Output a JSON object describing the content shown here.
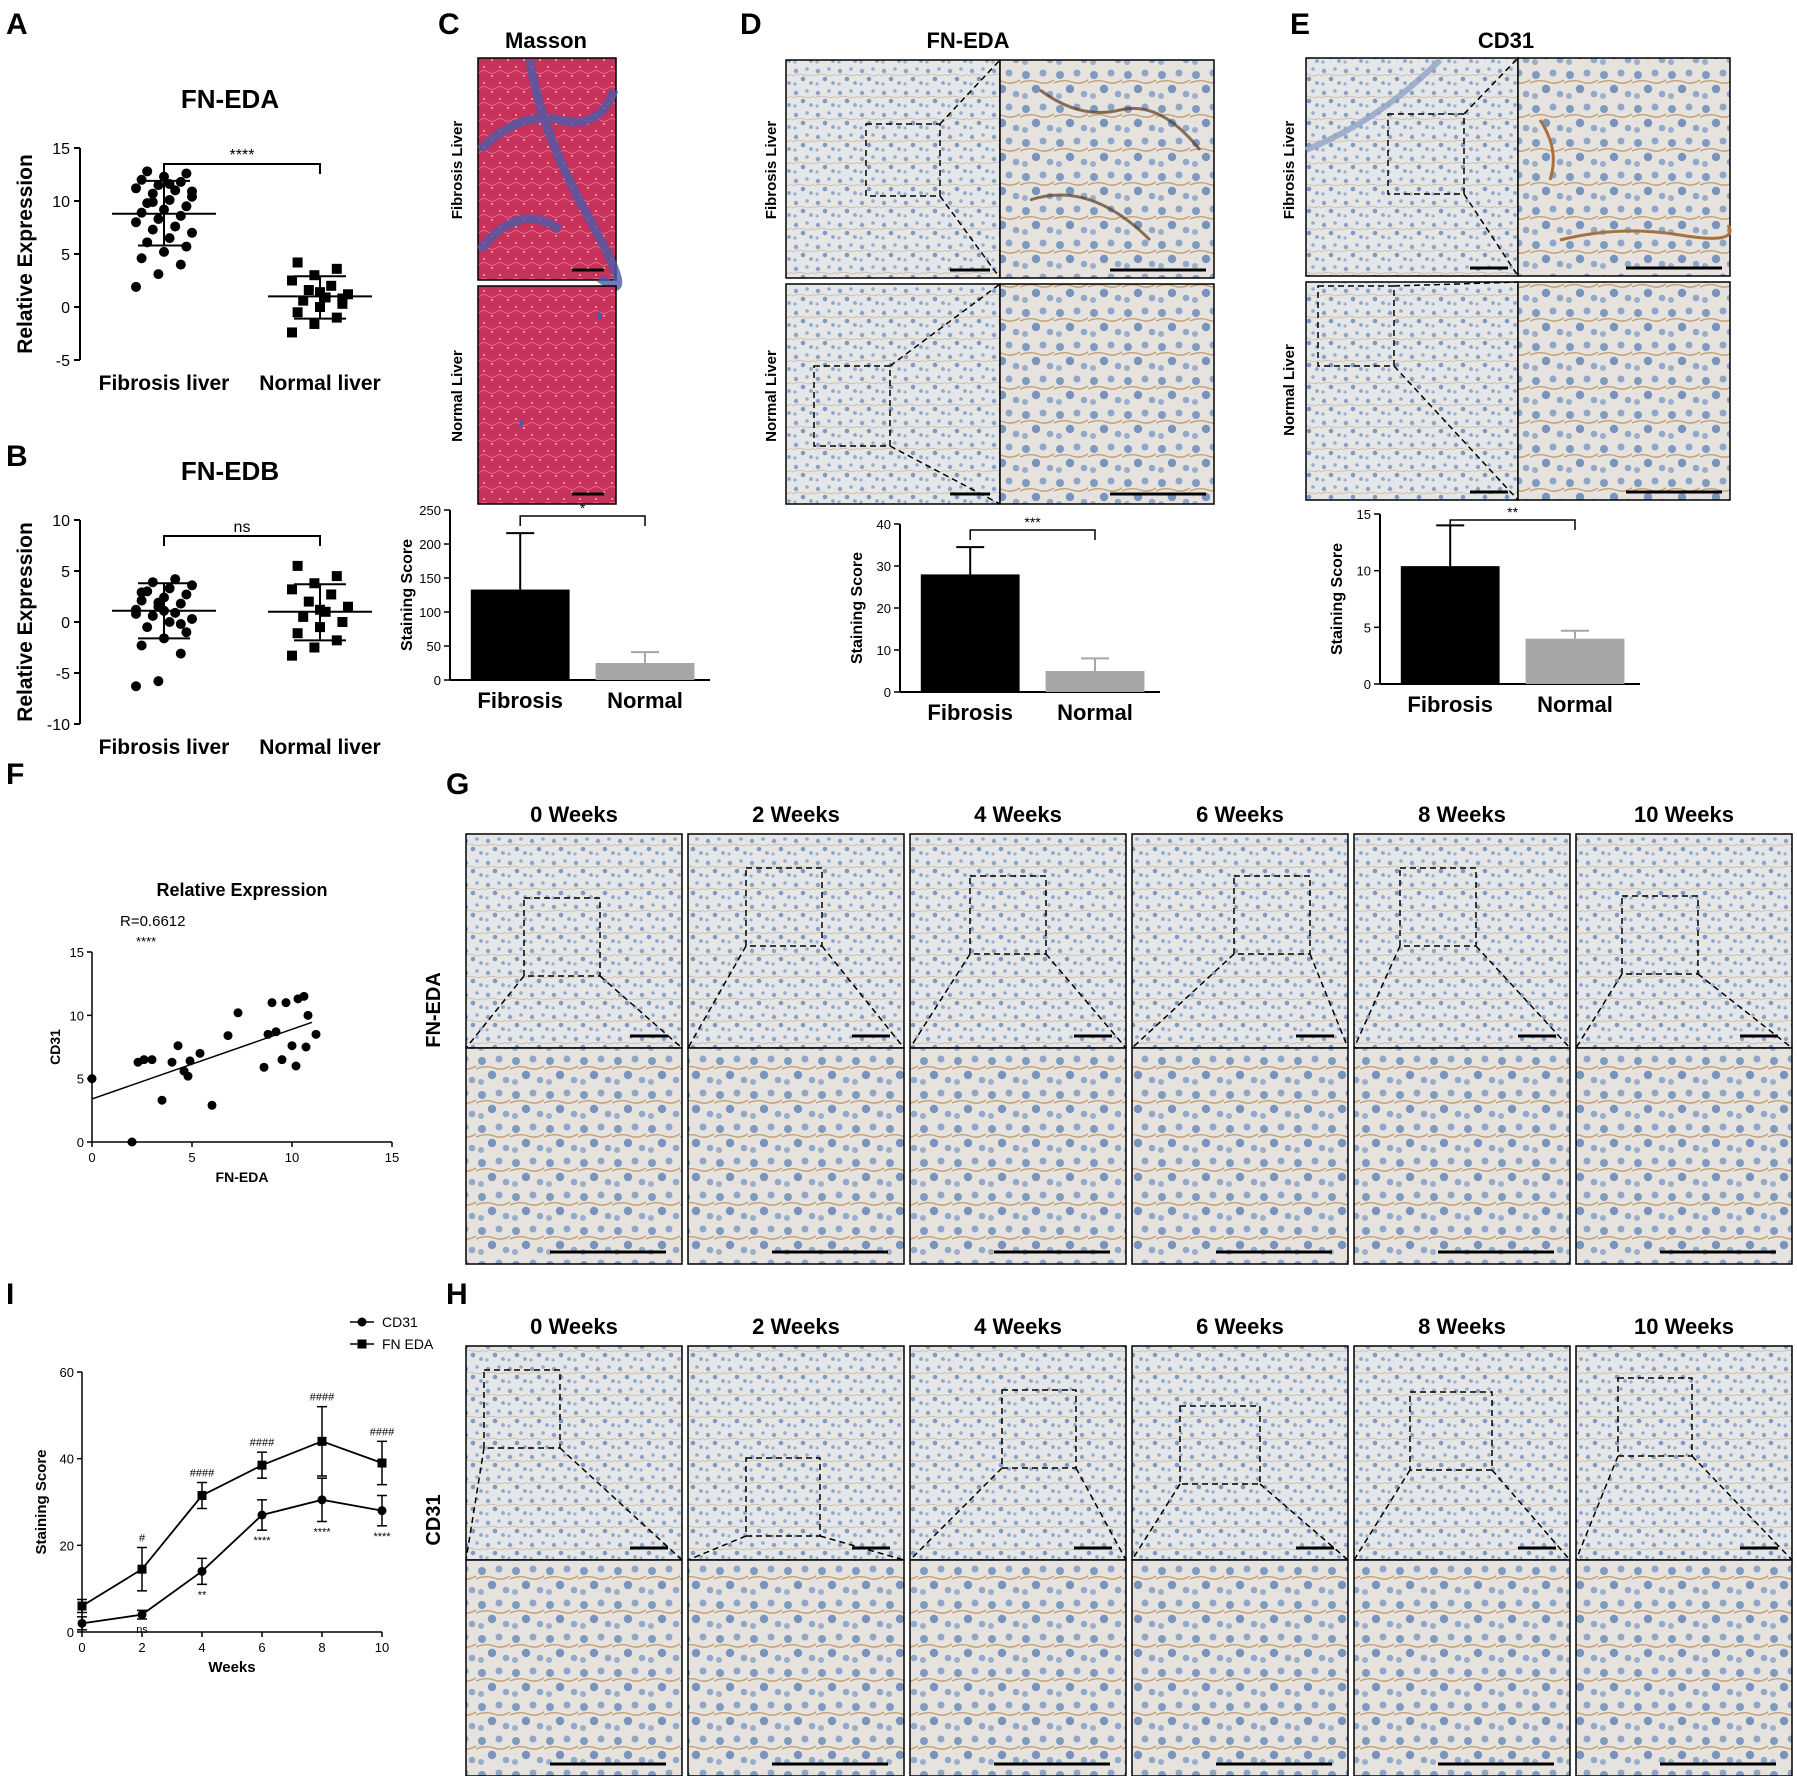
{
  "panels": {
    "A": "A",
    "B": "B",
    "C": "C",
    "D": "D",
    "E": "E",
    "F": "F",
    "G": "G",
    "H": "H",
    "I": "I"
  },
  "colors": {
    "masson_red": "#c8325a",
    "masson_blue": "#4e5aa8",
    "ihc_bg": "#e4e6e8",
    "ihc_nuclei": "#7f9ac0",
    "ihc_brown": "#a8703c",
    "bar_fibrosis": "#000000",
    "bar_normal": "#a6a6a6"
  },
  "micrographs": {
    "masson_title": "Masson",
    "fnEDA_title": "FN-EDA",
    "cd31_title": "CD31",
    "row_fibrosis": "Fibrosis Liver",
    "row_normal": "Normal Liver",
    "week_labels": [
      "0 Weeks",
      "2 Weeks",
      "4 Weeks",
      "6 Weeks",
      "8 Weeks",
      "10 Weeks"
    ],
    "G_row_label": "FN-EDA",
    "H_row_label": "CD31"
  },
  "chart_data": [
    {
      "id": "A",
      "type": "scatter",
      "title": "FN-EDA",
      "xlabel": "",
      "ylabel": "Relative Expression",
      "categories": [
        "Fibrosis liver",
        "Normal liver"
      ],
      "ylim": [
        -5,
        15
      ],
      "yticks": [
        -5,
        0,
        5,
        10,
        15
      ],
      "significance": "****",
      "series": [
        {
          "values": [
            1.9,
            3.1,
            4.0,
            4.6,
            5.2,
            5.7,
            6.1,
            6.5,
            7.0,
            7.3,
            7.6,
            8.0,
            8.3,
            8.6,
            8.9,
            9.2,
            9.5,
            9.8,
            10.1,
            10.4,
            10.7,
            11.0,
            11.2,
            11.5,
            11.8,
            12.0,
            12.3,
            12.6,
            12.8,
            11.6,
            10.9,
            9.9
          ]
        },
        {
          "values": [
            -2.4,
            -1.6,
            -1.0,
            -0.5,
            0.0,
            0.3,
            0.6,
            0.9,
            1.2,
            1.6,
            2.0,
            2.5,
            3.0,
            3.6,
            4.2,
            1.4,
            0.8
          ]
        }
      ],
      "summary": [
        {
          "mean": 8.8,
          "sd_low": 5.8,
          "sd_high": 11.9
        },
        {
          "mean": 1.0,
          "sd_low": -1.1,
          "sd_high": 2.9
        }
      ]
    },
    {
      "id": "B",
      "type": "scatter",
      "title": "FN-EDB",
      "xlabel": "",
      "ylabel": "Relative Expression",
      "categories": [
        "Fibrosis liver",
        "Normal liver"
      ],
      "ylim": [
        -10,
        10
      ],
      "yticks": [
        -10,
        -5,
        0,
        5,
        10
      ],
      "significance": "ns",
      "series": [
        {
          "values": [
            -6.3,
            -5.8,
            -3.1,
            -2.3,
            -1.6,
            -1.0,
            -0.5,
            0.0,
            0.3,
            0.6,
            0.9,
            1.2,
            1.5,
            1.8,
            2.1,
            2.4,
            2.7,
            3.0,
            3.3,
            3.6,
            3.9,
            4.2,
            0.8,
            1.9,
            -0.2,
            2.9,
            1.1
          ]
        },
        {
          "values": [
            -3.3,
            -2.5,
            -1.8,
            -1.1,
            -0.5,
            0.0,
            0.5,
            1.0,
            1.5,
            2.0,
            2.7,
            3.2,
            3.8,
            4.5,
            5.5,
            1.2
          ]
        }
      ],
      "summary": [
        {
          "mean": 1.1,
          "sd_low": -1.6,
          "sd_high": 3.8
        },
        {
          "mean": 1.0,
          "sd_low": -1.8,
          "sd_high": 3.7
        }
      ]
    },
    {
      "id": "C",
      "type": "bar",
      "title": "",
      "xlabel": "",
      "ylabel": "Staining Score",
      "categories": [
        "Fibrosis",
        "Normal"
      ],
      "values": [
        133,
        25
      ],
      "errors": [
        83,
        16
      ],
      "ylim": [
        0,
        250
      ],
      "yticks": [
        0,
        50,
        100,
        150,
        200,
        250
      ],
      "significance": "*"
    },
    {
      "id": "D",
      "type": "bar",
      "title": "",
      "xlabel": "",
      "ylabel": "Staining Score",
      "categories": [
        "Fibrosis",
        "Normal"
      ],
      "values": [
        28,
        5
      ],
      "errors": [
        6.5,
        3
      ],
      "ylim": [
        0,
        40
      ],
      "yticks": [
        0,
        10,
        20,
        30,
        40
      ],
      "significance": "***"
    },
    {
      "id": "E",
      "type": "bar",
      "title": "",
      "xlabel": "",
      "ylabel": "Staining Score",
      "categories": [
        "Fibrosis",
        "Normal"
      ],
      "values": [
        10.4,
        4.0
      ],
      "errors": [
        3.6,
        0.7
      ],
      "ylim": [
        0,
        15
      ],
      "yticks": [
        0,
        5,
        10,
        15
      ],
      "significance": "**"
    },
    {
      "id": "F",
      "type": "scatter",
      "title": "Relative Expression",
      "xlabel": "FN-EDA",
      "ylabel": "CD31",
      "xlim": [
        0,
        15
      ],
      "ylim": [
        0,
        15
      ],
      "xticks": [
        0,
        5,
        10,
        15
      ],
      "yticks": [
        0,
        5,
        10,
        15
      ],
      "annotation": "R=0.6612",
      "significance": "****",
      "fit": {
        "intercept": 3.4,
        "slope": 0.55
      },
      "points": [
        [
          0,
          5
        ],
        [
          2,
          0
        ],
        [
          2.3,
          6.3
        ],
        [
          2.6,
          6.5
        ],
        [
          3.0,
          6.5
        ],
        [
          3.5,
          3.3
        ],
        [
          4.0,
          6.3
        ],
        [
          4.3,
          7.6
        ],
        [
          4.6,
          5.6
        ],
        [
          4.8,
          5.2
        ],
        [
          4.9,
          6.4
        ],
        [
          5.4,
          7.0
        ],
        [
          6.0,
          2.9
        ],
        [
          6.8,
          8.4
        ],
        [
          7.3,
          10.2
        ],
        [
          8.6,
          5.9
        ],
        [
          8.8,
          8.5
        ],
        [
          9.2,
          8.7
        ],
        [
          9.0,
          11.0
        ],
        [
          9.5,
          6.5
        ],
        [
          9.7,
          11.0
        ],
        [
          10.0,
          7.6
        ],
        [
          10.2,
          6.0
        ],
        [
          10.3,
          11.3
        ],
        [
          10.6,
          11.5
        ],
        [
          10.7,
          7.5
        ],
        [
          10.8,
          10.0
        ],
        [
          11.2,
          8.5
        ]
      ]
    },
    {
      "id": "I",
      "type": "line",
      "title": "",
      "xlabel": "Weeks",
      "ylabel": "Staining Score",
      "x": [
        0,
        2,
        4,
        6,
        8,
        10
      ],
      "xlim": [
        0,
        10
      ],
      "ylim": [
        0,
        60
      ],
      "xticks": [
        0,
        2,
        4,
        6,
        8,
        10
      ],
      "yticks": [
        0,
        20,
        40,
        60
      ],
      "legend": "top-right",
      "series": [
        {
          "name": "CD31",
          "values": [
            2,
            4,
            14,
            27,
            30.5,
            28
          ],
          "errors": [
            1.5,
            1,
            3,
            3.5,
            5,
            3.5
          ],
          "annotations": [
            "",
            "ns",
            "**",
            "****",
            "****",
            "****"
          ]
        },
        {
          "name": "FN EDA",
          "values": [
            6,
            14.5,
            31.5,
            38.5,
            44,
            39
          ],
          "errors": [
            1.5,
            5,
            3,
            3,
            8,
            5
          ],
          "annotations": [
            "",
            "#",
            "####",
            "####",
            "####",
            "####"
          ]
        }
      ]
    }
  ]
}
